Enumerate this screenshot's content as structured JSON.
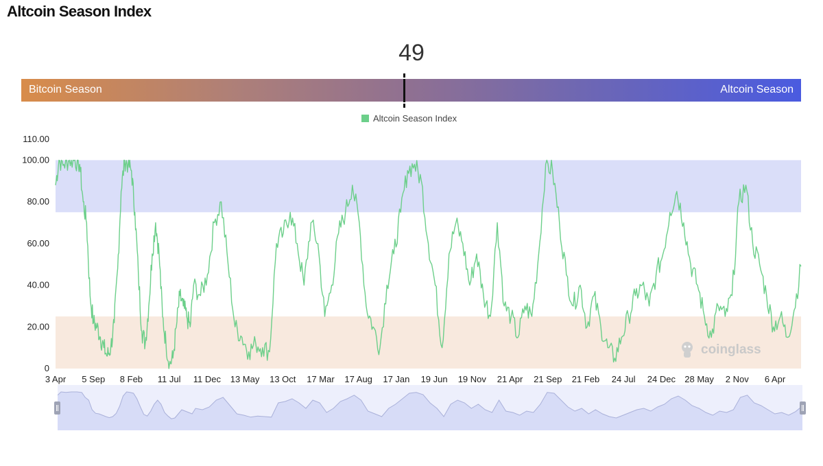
{
  "page": {
    "title": "Altcoin Season Index"
  },
  "gauge": {
    "value": "49",
    "value_fraction": 0.49,
    "left_label": "Bitcoin Season",
    "right_label": "Altcoin Season"
  },
  "legend": {
    "label": "Altcoin Season Index",
    "color": "#6ccf8a"
  },
  "watermark": {
    "text": "coinglass"
  },
  "colors": {
    "line": "#6ccf8a",
    "altcoin_band": "#dadef9",
    "bitcoin_band": "#f8e9de",
    "axis_text": "#222222"
  },
  "chart_data": {
    "type": "line",
    "title": "Altcoin Season Index",
    "xlabel": "",
    "ylabel": "",
    "ylim": [
      0,
      110
    ],
    "y_ticks": [
      "0",
      "20.00",
      "40.00",
      "60.00",
      "80.00",
      "100.00",
      "110.00"
    ],
    "y_tick_values": [
      0,
      20,
      40,
      60,
      80,
      100,
      110
    ],
    "x_tick_labels": [
      "3 Apr",
      "5 Sep",
      "8 Feb",
      "11 Jul",
      "11 Dec",
      "13 May",
      "13 Oct",
      "17 Mar",
      "17 Aug",
      "17 Jan",
      "19 Jun",
      "19 Nov",
      "21 Apr",
      "21 Sep",
      "21 Feb",
      "24 Jul",
      "24 Dec",
      "28 May",
      "2 Nov",
      "6 Apr"
    ],
    "x_range": [
      0,
      1080
    ],
    "bands": [
      {
        "name": "Altcoin Season zone",
        "from": 75,
        "to": 100
      },
      {
        "name": "Bitcoin Season zone",
        "from": 0,
        "to": 25
      }
    ],
    "series": [
      {
        "name": "Altcoin Season Index",
        "x": [
          0,
          5,
          12,
          20,
          28,
          35,
          40,
          45,
          50,
          55,
          60,
          65,
          70,
          75,
          80,
          85,
          90,
          95,
          100,
          105,
          110,
          115,
          120,
          125,
          130,
          135,
          140,
          145,
          150,
          155,
          160,
          165,
          170,
          175,
          180,
          185,
          190,
          195,
          200,
          210,
          220,
          230,
          240,
          250,
          260,
          270,
          280,
          290,
          300,
          310,
          320,
          330,
          340,
          350,
          360,
          370,
          380,
          390,
          400,
          410,
          420,
          430,
          440,
          450,
          460,
          470,
          480,
          490,
          500,
          510,
          520,
          530,
          540,
          550,
          560,
          570,
          580,
          590,
          600,
          610,
          620,
          630,
          640,
          650,
          660,
          670,
          680,
          690,
          700,
          710,
          720,
          730,
          740,
          750,
          760,
          770,
          780,
          790,
          800,
          810,
          820,
          830,
          840,
          850,
          860,
          870,
          880,
          890,
          900,
          910,
          920,
          930,
          940,
          950,
          960,
          970,
          980,
          990,
          1000,
          1010,
          1020,
          1030,
          1040,
          1050,
          1060,
          1070,
          1080
        ],
        "values": [
          88,
          100,
          98,
          100,
          100,
          98,
          80,
          70,
          35,
          22,
          20,
          15,
          10,
          6,
          10,
          22,
          48,
          85,
          100,
          98,
          95,
          75,
          45,
          18,
          12,
          30,
          55,
          70,
          55,
          25,
          12,
          2,
          5,
          20,
          35,
          30,
          25,
          20,
          40,
          35,
          45,
          70,
          80,
          50,
          20,
          15,
          8,
          12,
          10,
          8,
          60,
          65,
          75,
          60,
          40,
          70,
          60,
          25,
          40,
          65,
          75,
          88,
          70,
          30,
          20,
          10,
          40,
          55,
          75,
          95,
          98,
          90,
          60,
          40,
          10,
          55,
          70,
          60,
          40,
          55,
          35,
          25,
          70,
          30,
          25,
          15,
          30,
          25,
          55,
          98,
          95,
          70,
          45,
          30,
          40,
          20,
          35,
          20,
          10,
          5,
          15,
          25,
          35,
          40,
          30,
          45,
          55,
          75,
          85,
          70,
          50,
          40,
          25,
          15,
          30,
          25,
          35,
          80,
          88,
          60,
          50,
          35,
          20,
          25,
          15,
          28,
          49
        ]
      }
    ]
  }
}
